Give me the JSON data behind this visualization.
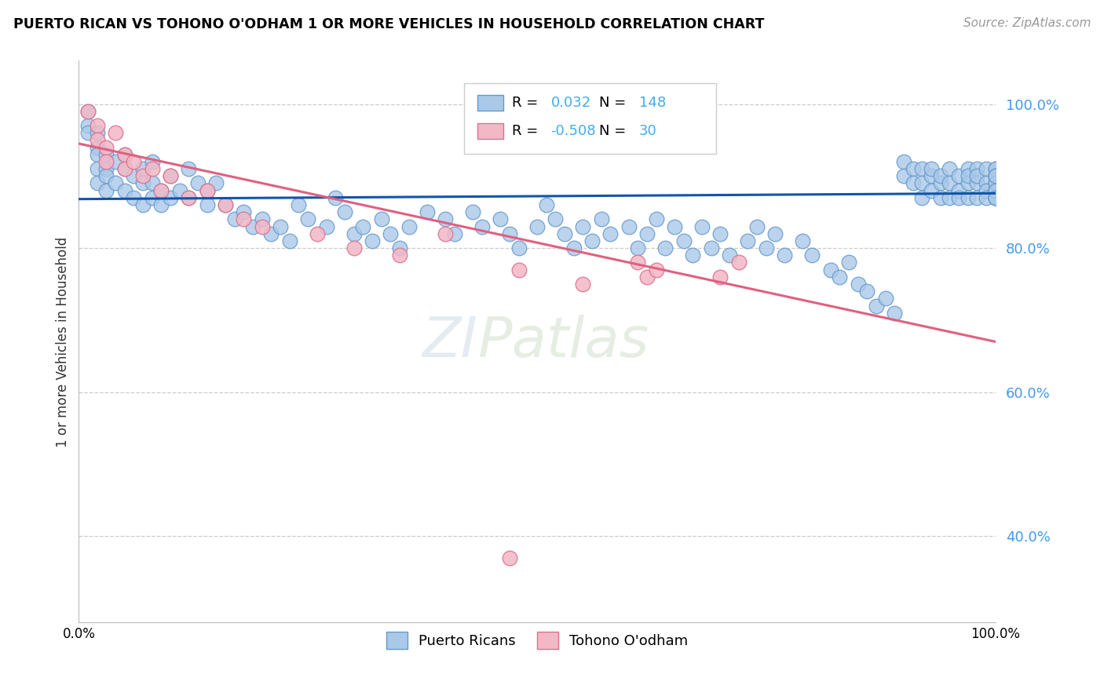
{
  "title": "PUERTO RICAN VS TOHONO O'ODHAM 1 OR MORE VEHICLES IN HOUSEHOLD CORRELATION CHART",
  "source": "Source: ZipAtlas.com",
  "ylabel": "1 or more Vehicles in Household",
  "legend_label_blue": "Puerto Ricans",
  "legend_label_pink": "Tohono O'odham",
  "r_blue": 0.032,
  "n_blue": 148,
  "r_pink": -0.508,
  "n_pink": 30,
  "blue_color": "#aac9e8",
  "blue_edge": "#6699cc",
  "pink_color": "#f2b8c6",
  "pink_edge": "#e07090",
  "blue_line_color": "#1155aa",
  "pink_line_color": "#e06080",
  "watermark_zi": "ZI",
  "watermark_patlas": "Patlas",
  "blue_line_x": [
    0.0,
    1.0
  ],
  "blue_line_y": [
    0.868,
    0.876
  ],
  "pink_line_x": [
    0.0,
    1.0
  ],
  "pink_line_y": [
    0.945,
    0.67
  ],
  "xlim": [
    0.0,
    1.0
  ],
  "ylim": [
    0.28,
    1.06
  ],
  "ytick_vals": [
    0.4,
    0.6,
    0.8,
    1.0
  ],
  "ytick_labels": [
    "40.0%",
    "60.0%",
    "80.0%",
    "100.0%"
  ],
  "blue_scatter_x": [
    0.01,
    0.01,
    0.01,
    0.02,
    0.02,
    0.02,
    0.02,
    0.02,
    0.03,
    0.03,
    0.03,
    0.03,
    0.04,
    0.04,
    0.05,
    0.05,
    0.05,
    0.06,
    0.06,
    0.07,
    0.07,
    0.07,
    0.08,
    0.08,
    0.08,
    0.09,
    0.09,
    0.1,
    0.1,
    0.11,
    0.12,
    0.12,
    0.13,
    0.14,
    0.14,
    0.15,
    0.16,
    0.17,
    0.18,
    0.19,
    0.2,
    0.21,
    0.22,
    0.23,
    0.24,
    0.25,
    0.27,
    0.28,
    0.29,
    0.3,
    0.31,
    0.32,
    0.33,
    0.34,
    0.35,
    0.36,
    0.38,
    0.4,
    0.41,
    0.43,
    0.44,
    0.46,
    0.47,
    0.48,
    0.5,
    0.51,
    0.52,
    0.53,
    0.54,
    0.55,
    0.56,
    0.57,
    0.58,
    0.6,
    0.61,
    0.62,
    0.63,
    0.64,
    0.65,
    0.66,
    0.67,
    0.68,
    0.69,
    0.7,
    0.71,
    0.73,
    0.74,
    0.75,
    0.76,
    0.77,
    0.79,
    0.8,
    0.82,
    0.83,
    0.84,
    0.85,
    0.86,
    0.87,
    0.88,
    0.89,
    0.9,
    0.9,
    0.91,
    0.91,
    0.92,
    0.92,
    0.92,
    0.93,
    0.93,
    0.93,
    0.94,
    0.94,
    0.94,
    0.95,
    0.95,
    0.95,
    0.96,
    0.96,
    0.96,
    0.97,
    0.97,
    0.97,
    0.97,
    0.98,
    0.98,
    0.98,
    0.98,
    0.99,
    0.99,
    0.99,
    0.99,
    1.0,
    1.0,
    1.0,
    1.0,
    1.0,
    1.0,
    1.0,
    1.0,
    1.0,
    1.0,
    1.0,
    1.0,
    1.0,
    1.0,
    1.0,
    1.0,
    1.0
  ],
  "blue_scatter_y": [
    0.99,
    0.97,
    0.96,
    0.96,
    0.94,
    0.93,
    0.91,
    0.89,
    0.93,
    0.91,
    0.9,
    0.88,
    0.92,
    0.89,
    0.93,
    0.91,
    0.88,
    0.9,
    0.87,
    0.91,
    0.89,
    0.86,
    0.92,
    0.89,
    0.87,
    0.88,
    0.86,
    0.9,
    0.87,
    0.88,
    0.91,
    0.87,
    0.89,
    0.86,
    0.88,
    0.89,
    0.86,
    0.84,
    0.85,
    0.83,
    0.84,
    0.82,
    0.83,
    0.81,
    0.86,
    0.84,
    0.83,
    0.87,
    0.85,
    0.82,
    0.83,
    0.81,
    0.84,
    0.82,
    0.8,
    0.83,
    0.85,
    0.84,
    0.82,
    0.85,
    0.83,
    0.84,
    0.82,
    0.8,
    0.83,
    0.86,
    0.84,
    0.82,
    0.8,
    0.83,
    0.81,
    0.84,
    0.82,
    0.83,
    0.8,
    0.82,
    0.84,
    0.8,
    0.83,
    0.81,
    0.79,
    0.83,
    0.8,
    0.82,
    0.79,
    0.81,
    0.83,
    0.8,
    0.82,
    0.79,
    0.81,
    0.79,
    0.77,
    0.76,
    0.78,
    0.75,
    0.74,
    0.72,
    0.73,
    0.71,
    0.92,
    0.9,
    0.91,
    0.89,
    0.91,
    0.89,
    0.87,
    0.9,
    0.88,
    0.91,
    0.89,
    0.87,
    0.9,
    0.91,
    0.89,
    0.87,
    0.9,
    0.88,
    0.87,
    0.91,
    0.89,
    0.87,
    0.9,
    0.91,
    0.89,
    0.87,
    0.9,
    0.91,
    0.89,
    0.88,
    0.87,
    0.9,
    0.91,
    0.89,
    0.87,
    0.88,
    0.9,
    0.87,
    0.88,
    0.89,
    0.91,
    0.9,
    0.88,
    0.87,
    0.89,
    0.9,
    0.88,
    0.87
  ],
  "pink_scatter_x": [
    0.01,
    0.02,
    0.02,
    0.03,
    0.03,
    0.04,
    0.05,
    0.05,
    0.06,
    0.07,
    0.08,
    0.09,
    0.1,
    0.12,
    0.14,
    0.16,
    0.18,
    0.2,
    0.26,
    0.3,
    0.35,
    0.4,
    0.48,
    0.55,
    0.61,
    0.62,
    0.63,
    0.7,
    0.72,
    0.47
  ],
  "pink_scatter_y": [
    0.99,
    0.97,
    0.95,
    0.94,
    0.92,
    0.96,
    0.93,
    0.91,
    0.92,
    0.9,
    0.91,
    0.88,
    0.9,
    0.87,
    0.88,
    0.86,
    0.84,
    0.83,
    0.82,
    0.8,
    0.79,
    0.82,
    0.77,
    0.75,
    0.78,
    0.76,
    0.77,
    0.76,
    0.78,
    0.37
  ]
}
